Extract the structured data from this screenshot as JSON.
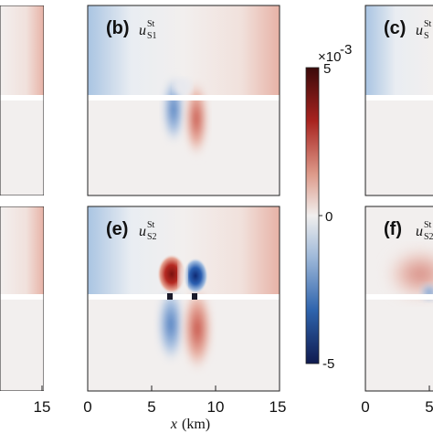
{
  "chart_data": {
    "type": "heatmap",
    "colormap": "diverging blue-white-red",
    "colors": {
      "negative": "#1a2a6c",
      "zero": "#f2efee",
      "positive": "#4a0d0d",
      "pos_mid": "#c0392b",
      "neg_mid": "#2f6db3"
    },
    "xlabel_var": "x",
    "xlabel_unit": "(km)",
    "xlim": [
      0,
      15
    ],
    "colorbar": {
      "ticks": [
        "5",
        "0",
        "-5"
      ],
      "multiplier_base": "×10",
      "multiplier_exp": "-3",
      "range": [
        -5,
        5
      ]
    },
    "panels": [
      {
        "id": "a",
        "letter": "",
        "symbol": "",
        "sup": "",
        "sub": "",
        "x_ticks": [
          "15"
        ],
        "visible": "right edge only"
      },
      {
        "id": "b",
        "letter": "(b)",
        "symbol": "u",
        "sup": "St",
        "sub": "S1",
        "x_ticks": []
      },
      {
        "id": "c",
        "letter": "(c)",
        "symbol": "u",
        "sup": "St",
        "sub": "S",
        "x_ticks": []
      },
      {
        "id": "d",
        "letter": "",
        "symbol": "",
        "sup": "",
        "sub": "",
        "x_ticks": []
      },
      {
        "id": "e",
        "letter": "(e)",
        "symbol": "u",
        "sup": "St",
        "sub": "S2",
        "x_ticks": [
          "0",
          "5",
          "10",
          "15"
        ]
      },
      {
        "id": "f",
        "letter": "(f)",
        "symbol": "u",
        "sup": "St",
        "sub": "S2",
        "x_ticks": [
          "0",
          "5"
        ]
      }
    ]
  }
}
